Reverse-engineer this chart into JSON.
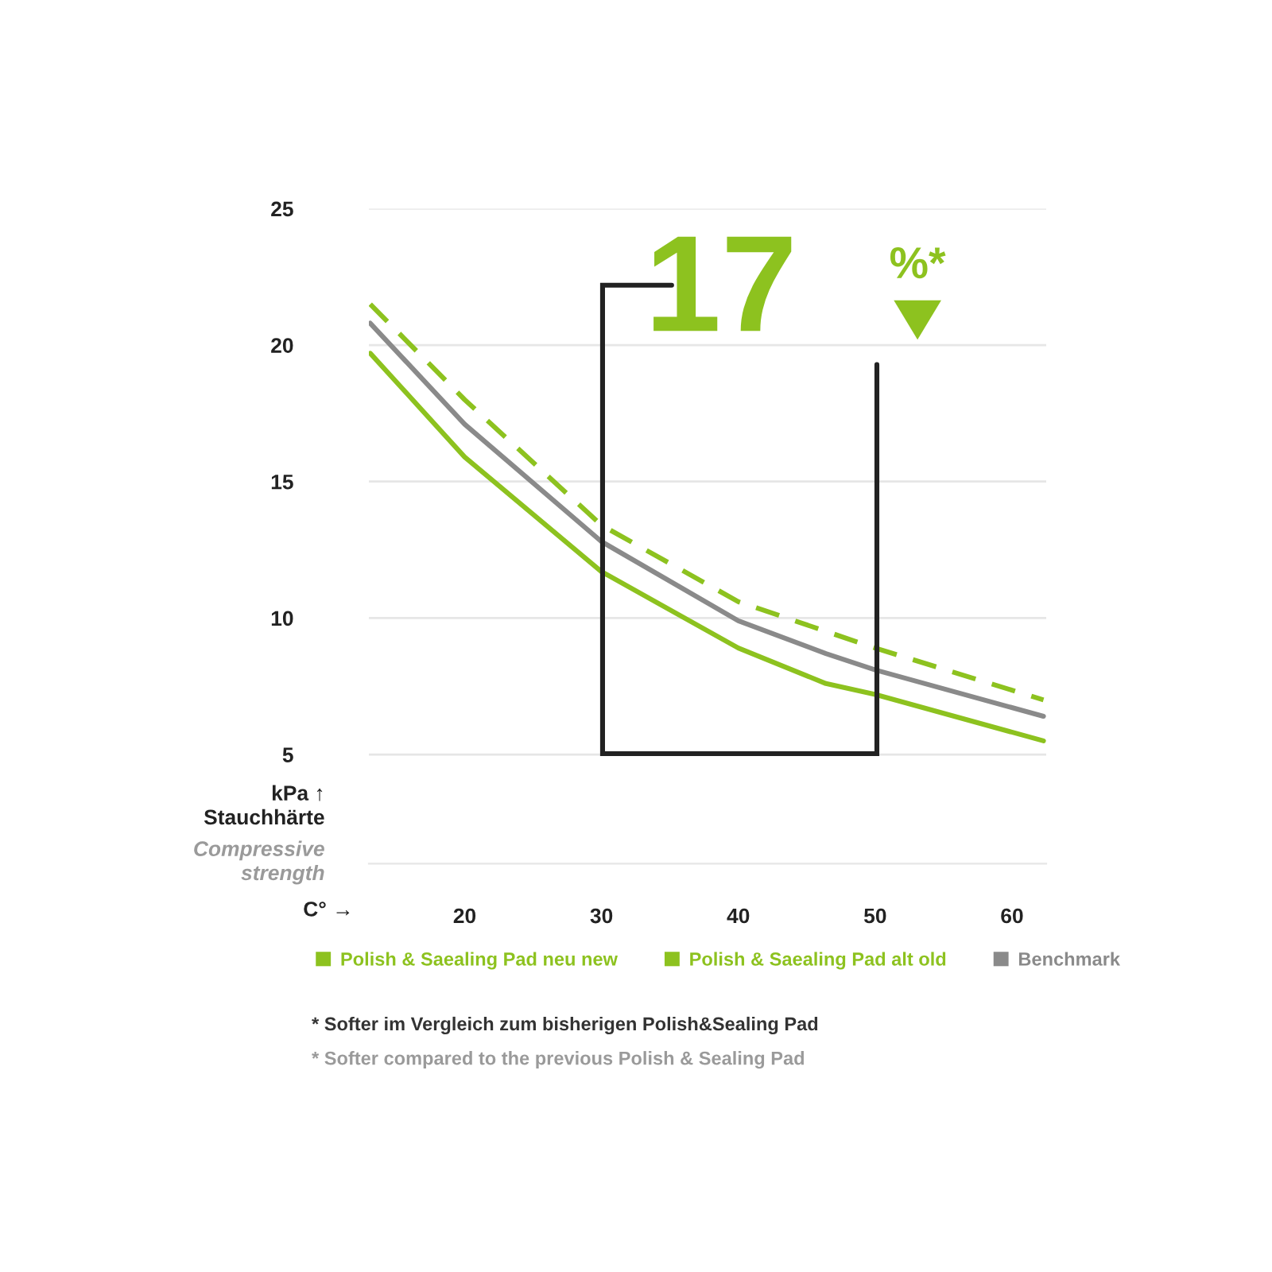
{
  "chart_data": {
    "type": "line",
    "x": [
      13.1,
      20,
      30,
      40,
      46.4,
      50,
      62.3
    ],
    "series": [
      {
        "name": "Polish & Saealing Pad neu new",
        "color": "#8dc21f",
        "line_style": "solid",
        "values": [
          19.7,
          15.9,
          11.7,
          8.9,
          7.6,
          7.2,
          5.5
        ]
      },
      {
        "name": "Polish & Saealing Pad alt old",
        "color": "#8dc21f",
        "line_style": "dashed",
        "x": [
          13.1,
          20,
          30,
          40,
          50,
          62.3
        ],
        "values": [
          21.5,
          18.0,
          13.4,
          10.6,
          8.9,
          7.0
        ]
      },
      {
        "name": "Benchmark",
        "color": "#8a8a8a",
        "line_style": "solid",
        "values": [
          20.8,
          17.1,
          12.8,
          9.9,
          8.7,
          8.1,
          6.4
        ]
      }
    ],
    "xlabel": "C° →",
    "ylabel": "kPa ↑\nStauchhärte",
    "xlim": [
      13,
      62.5
    ],
    "xticks": [
      20,
      30,
      40,
      50,
      60
    ],
    "ylim": [
      1,
      25
    ],
    "yticks": [
      5,
      10,
      15,
      20,
      25
    ],
    "grid": "y",
    "legend": "bottom",
    "marker": "none",
    "annotations": [
      "Compressive\nstrength",
      "17",
      "%*",
      "* Softer im Vergleich zum bisherigen Polish&Sealing Pad",
      "* Softer compared to the previous Polish & Sealing Pad"
    ]
  }
}
